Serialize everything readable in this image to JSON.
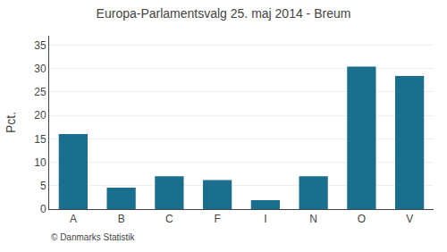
{
  "chart_data": {
    "type": "bar",
    "title": "Europa-Parlamentsvalg 25. maj 2014 - Breum",
    "categories": [
      "A",
      "B",
      "C",
      "F",
      "I",
      "N",
      "O",
      "V"
    ],
    "values": [
      16.0,
      4.6,
      7.0,
      6.2,
      1.9,
      7.0,
      30.4,
      28.4
    ],
    "color": "#1a6e8e",
    "ylabel": "Pct.",
    "ylim": [
      0,
      37
    ],
    "yticks": [
      0,
      5,
      10,
      15,
      20,
      25,
      30,
      35
    ],
    "grid": true,
    "annotations": [
      "© Danmarks Statistik"
    ]
  }
}
